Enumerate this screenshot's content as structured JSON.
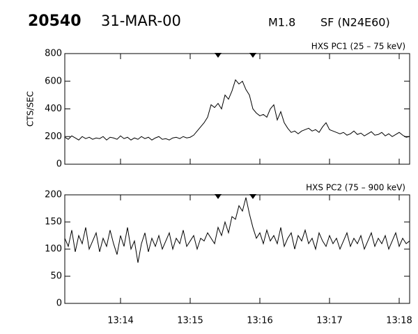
{
  "header": {
    "id": "20540",
    "date": "31-MAR-00",
    "class": "M1.8",
    "location": "SF (N24E60)"
  },
  "chart_data": [
    {
      "type": "line",
      "title": "HXS PC1 (25 – 75 keV)",
      "y_label": "CTS/SEC",
      "color": "#000000",
      "x": [
        793.2,
        793.25,
        793.3,
        793.35,
        793.4,
        793.45,
        793.5,
        793.55,
        793.6,
        793.65,
        793.7,
        793.75,
        793.8,
        793.85,
        793.9,
        793.95,
        794,
        794.05,
        794.1,
        794.15,
        794.2,
        794.25,
        794.3,
        794.35,
        794.4,
        794.45,
        794.5,
        794.55,
        794.6,
        794.65,
        794.7,
        794.75,
        794.8,
        794.85,
        794.9,
        794.95,
        795,
        795.05,
        795.1,
        795.15,
        795.2,
        795.25,
        795.3,
        795.35,
        795.4,
        795.45,
        795.5,
        795.55,
        795.6,
        795.65,
        795.7,
        795.75,
        795.8,
        795.85,
        795.9,
        795.95,
        796,
        796.05,
        796.1,
        796.15,
        796.2,
        796.25,
        796.3,
        796.35,
        796.4,
        796.45,
        796.5,
        796.55,
        796.6,
        796.65,
        796.7,
        796.75,
        796.8,
        796.85,
        796.9,
        796.95,
        797,
        797.05,
        797.1,
        797.15,
        797.2,
        797.25,
        797.3,
        797.35,
        797.4,
        797.45,
        797.5,
        797.55,
        797.6,
        797.65,
        797.7,
        797.75,
        797.8,
        797.85,
        797.9,
        797.95,
        798,
        798.05,
        798.1,
        798.15
      ],
      "values": [
        195,
        180,
        205,
        190,
        175,
        200,
        185,
        195,
        180,
        190,
        185,
        200,
        175,
        195,
        190,
        180,
        205,
        185,
        195,
        175,
        190,
        180,
        200,
        185,
        195,
        175,
        190,
        200,
        180,
        185,
        175,
        190,
        195,
        185,
        200,
        190,
        195,
        210,
        240,
        270,
        300,
        340,
        430,
        410,
        440,
        400,
        500,
        470,
        530,
        610,
        580,
        600,
        540,
        500,
        400,
        370,
        350,
        360,
        340,
        400,
        430,
        320,
        380,
        300,
        260,
        230,
        240,
        220,
        240,
        250,
        260,
        240,
        250,
        230,
        270,
        300,
        250,
        240,
        230,
        220,
        230,
        210,
        220,
        240,
        215,
        225,
        205,
        220,
        235,
        210,
        215,
        230,
        205,
        220,
        200,
        215,
        230,
        210,
        195,
        200
      ],
      "xlim": [
        793.2,
        798.15
      ],
      "xticks": [
        794,
        795,
        796,
        797,
        798
      ],
      "ylim": [
        0,
        800
      ],
      "yticks": [
        0,
        200,
        400,
        600,
        800
      ],
      "markers": [
        795.4,
        795.9
      ]
    },
    {
      "type": "line",
      "title": "HXS PC2 (75 – 900 keV)",
      "color": "#000000",
      "x": [
        793.2,
        793.25,
        793.3,
        793.35,
        793.4,
        793.45,
        793.5,
        793.55,
        793.6,
        793.65,
        793.7,
        793.75,
        793.8,
        793.85,
        793.9,
        793.95,
        794,
        794.05,
        794.1,
        794.15,
        794.2,
        794.25,
        794.3,
        794.35,
        794.4,
        794.45,
        794.5,
        794.55,
        794.6,
        794.65,
        794.7,
        794.75,
        794.8,
        794.85,
        794.9,
        794.95,
        795,
        795.05,
        795.1,
        795.15,
        795.2,
        795.25,
        795.3,
        795.35,
        795.4,
        795.45,
        795.5,
        795.55,
        795.6,
        795.65,
        795.7,
        795.75,
        795.8,
        795.85,
        795.9,
        795.95,
        796,
        796.05,
        796.1,
        796.15,
        796.2,
        796.25,
        796.3,
        796.35,
        796.4,
        796.45,
        796.5,
        796.55,
        796.6,
        796.65,
        796.7,
        796.75,
        796.8,
        796.85,
        796.9,
        796.95,
        797,
        797.05,
        797.1,
        797.15,
        797.2,
        797.25,
        797.3,
        797.35,
        797.4,
        797.45,
        797.5,
        797.55,
        797.6,
        797.65,
        797.7,
        797.75,
        797.8,
        797.85,
        797.9,
        797.95,
        798,
        798.05,
        798.1,
        798.15
      ],
      "values": [
        120,
        105,
        135,
        95,
        125,
        110,
        140,
        100,
        115,
        130,
        95,
        120,
        105,
        135,
        110,
        90,
        125,
        105,
        140,
        100,
        115,
        75,
        110,
        130,
        95,
        120,
        105,
        125,
        100,
        115,
        130,
        100,
        120,
        110,
        135,
        105,
        115,
        125,
        100,
        120,
        115,
        130,
        120,
        110,
        140,
        125,
        150,
        130,
        160,
        155,
        180,
        170,
        195,
        165,
        140,
        120,
        130,
        110,
        135,
        115,
        125,
        110,
        140,
        105,
        120,
        130,
        100,
        125,
        115,
        135,
        110,
        120,
        100,
        130,
        115,
        105,
        125,
        110,
        120,
        100,
        115,
        130,
        105,
        120,
        110,
        125,
        100,
        115,
        130,
        105,
        120,
        110,
        125,
        100,
        115,
        130,
        105,
        120,
        110,
        115
      ],
      "xlim": [
        793.2,
        798.15
      ],
      "xticks": [
        {
          "value": 794,
          "label": "13:14"
        },
        {
          "value": 795,
          "label": "13:15"
        },
        {
          "value": 796,
          "label": "13:16"
        },
        {
          "value": 797,
          "label": "13:17"
        },
        {
          "value": 798,
          "label": "13:18"
        }
      ],
      "ylim": [
        0,
        200
      ],
      "yticks": [
        0,
        50,
        100,
        150,
        200
      ],
      "markers": [
        795.4,
        795.9
      ]
    }
  ]
}
